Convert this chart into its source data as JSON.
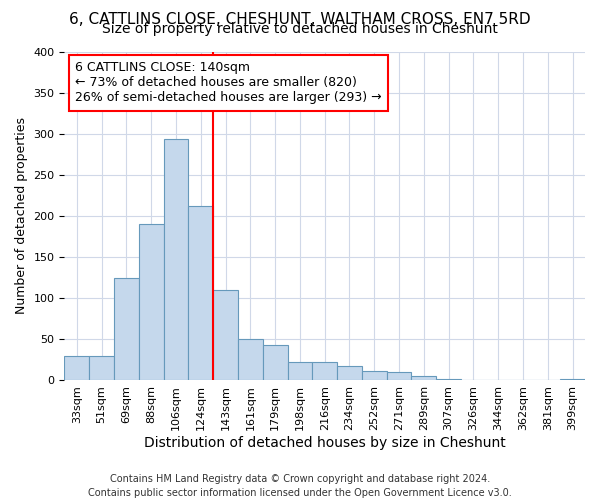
{
  "title": "6, CATTLINS CLOSE, CHESHUNT, WALTHAM CROSS, EN7 5RD",
  "subtitle": "Size of property relative to detached houses in Cheshunt",
  "xlabel": "Distribution of detached houses by size in Cheshunt",
  "ylabel": "Number of detached properties",
  "footer_line1": "Contains HM Land Registry data © Crown copyright and database right 2024.",
  "footer_line2": "Contains public sector information licensed under the Open Government Licence v3.0.",
  "bin_labels": [
    "33sqm",
    "51sqm",
    "69sqm",
    "88sqm",
    "106sqm",
    "124sqm",
    "143sqm",
    "161sqm",
    "179sqm",
    "198sqm",
    "216sqm",
    "234sqm",
    "252sqm",
    "271sqm",
    "289sqm",
    "307sqm",
    "326sqm",
    "344sqm",
    "362sqm",
    "381sqm",
    "399sqm"
  ],
  "bar_values": [
    30,
    30,
    125,
    190,
    293,
    212,
    110,
    50,
    43,
    23,
    23,
    17,
    12,
    10,
    5,
    2,
    1,
    1,
    1,
    1,
    2
  ],
  "bar_color": "#c5d8ec",
  "bar_edge_color": "#6699bb",
  "background_color": "#ffffff",
  "plot_bg_color": "#ffffff",
  "grid_color": "#d0d8e8",
  "vline_x_index": 6,
  "vline_color": "red",
  "annotation_line1": "6 CATTLINS CLOSE: 140sqm",
  "annotation_line2": "← 73% of detached houses are smaller (820)",
  "annotation_line3": "26% of semi-detached houses are larger (293) →",
  "annotation_box_color": "white",
  "annotation_box_edge_color": "red",
  "ylim": [
    0,
    400
  ],
  "yticks": [
    0,
    50,
    100,
    150,
    200,
    250,
    300,
    350,
    400
  ],
  "title_fontsize": 11,
  "subtitle_fontsize": 10,
  "xlabel_fontsize": 10,
  "ylabel_fontsize": 9,
  "annotation_fontsize": 9,
  "tick_fontsize": 8,
  "footer_fontsize": 7
}
